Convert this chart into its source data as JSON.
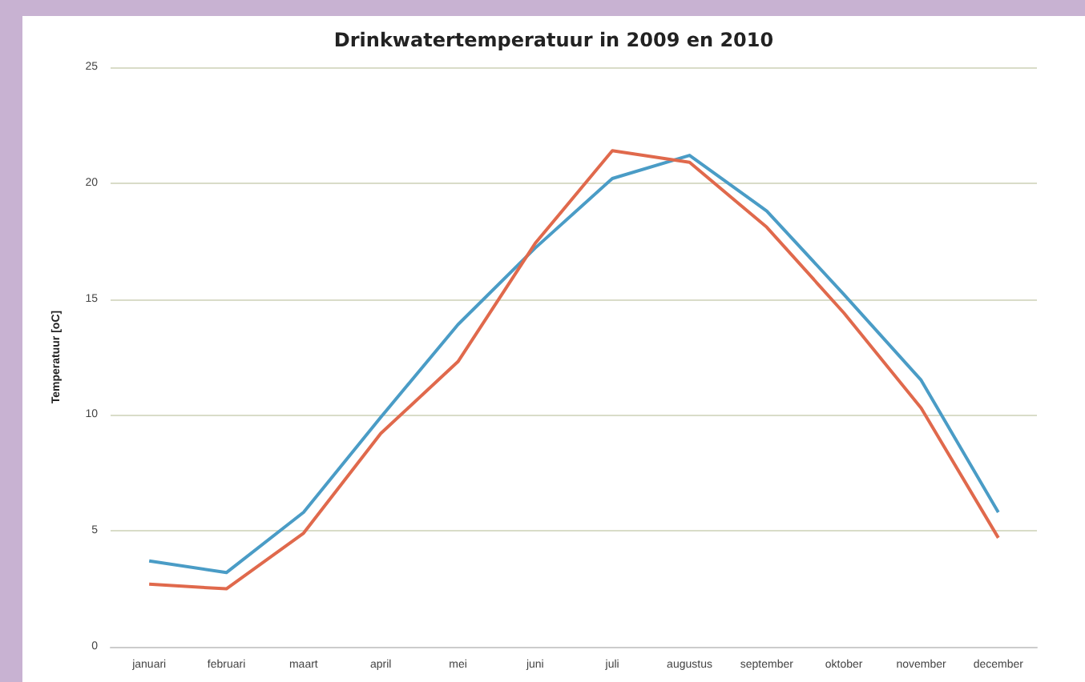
{
  "chart_data": {
    "type": "line",
    "title": "Drinkwatertemperatuur in 2009 en 2010",
    "ylabel": "Temperatuur [oC]",
    "categories": [
      "januari",
      "februari",
      "maart",
      "april",
      "mei",
      "juni",
      "juli",
      "augustus",
      "september",
      "oktober",
      "november",
      "december"
    ],
    "series": [
      {
        "color": "#4a9cc6",
        "values": [
          3.7,
          3.2,
          5.8,
          9.9,
          13.9,
          17.2,
          20.2,
          21.2,
          18.8,
          15.2,
          11.5,
          5.8
        ]
      },
      {
        "color": "#e0694c",
        "values": [
          2.7,
          2.5,
          4.9,
          9.2,
          12.3,
          17.4,
          21.4,
          20.9,
          18.1,
          14.4,
          10.3,
          4.7
        ]
      }
    ],
    "ylim": [
      0,
      25
    ],
    "yticks": [
      0,
      5,
      10,
      15,
      20,
      25
    ],
    "grid": "y",
    "marker": "none",
    "line_style": "solid"
  }
}
